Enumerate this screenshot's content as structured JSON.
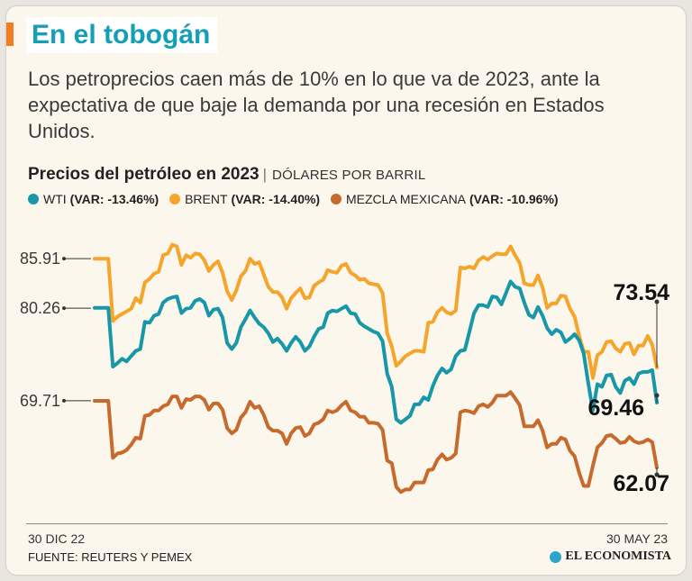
{
  "header": {
    "title": "En el tobogán",
    "deck": "Los petroprecios caen más de 10% en lo que va de 2023, ante la expectativa de que baje la demanda por una recesión en Estados Unidos.",
    "chart_title": "Precios del petróleo en 2023",
    "separator": "|",
    "unit": "DÓLARES POR BARRIL"
  },
  "footer": {
    "x_start": "30 DIC 22",
    "x_end": "30 MAY 23",
    "source": "FUENTE: REUTERS Y PEMEX",
    "brand": "EL ECONOMISTA"
  },
  "colors": {
    "wti": "#1897a8",
    "brent": "#f5a52b",
    "mezcla": "#c76a2d",
    "title": "#159fb6"
  },
  "chart_data": {
    "type": "line",
    "title": "Precios del petróleo en 2023",
    "ylabel": "DÓLARES POR BARRIL",
    "x_range": [
      "30 DIC 22",
      "30 MAY 23"
    ],
    "ylim": [
      58,
      89
    ],
    "y_ticks": [
      {
        "label": "85.91",
        "value": 85.91
      },
      {
        "label": "80.26",
        "value": 80.26
      },
      {
        "label": "69.71",
        "value": 69.71
      }
    ],
    "end_labels": [
      {
        "series": "brent",
        "label": "73.54",
        "value": 73.54
      },
      {
        "series": "wti",
        "label": "69.46",
        "value": 69.46
      },
      {
        "series": "mezcla",
        "label": "62.07",
        "value": 62.07
      }
    ],
    "series": [
      {
        "key": "wti",
        "name": "WTI",
        "var": "(VAR: -13.46%)",
        "values": [
          80.3,
          80.3,
          80.3,
          80.3,
          73.6,
          74.0,
          74.5,
          74.2,
          74.8,
          75.4,
          75.6,
          78.7,
          78.6,
          79.4,
          79.6,
          80.9,
          81.3,
          81.5,
          81.6,
          79.7,
          80.2,
          80.3,
          81.1,
          81.3,
          80.9,
          79.4,
          80.1,
          80.2,
          79.2,
          76.3,
          75.6,
          76.3,
          78.1,
          79.0,
          80.0,
          79.2,
          78.5,
          78.1,
          77.4,
          76.4,
          76.8,
          76.2,
          75.4,
          76.3,
          77.0,
          76.4,
          75.4,
          75.9,
          77.0,
          77.9,
          78.1,
          79.7,
          80.0,
          79.9,
          80.2,
          80.5,
          79.7,
          79.6,
          78.6,
          78.2,
          77.9,
          77.6,
          77.4,
          76.5,
          72.8,
          71.3,
          67.6,
          67.2,
          67.6,
          68.0,
          69.3,
          69.3,
          70.1,
          69.8,
          71.4,
          72.6,
          73.4,
          72.9,
          73.3,
          74.8,
          75.4,
          75.5,
          77.6,
          79.7,
          80.6,
          80.6,
          80.4,
          81.6,
          81.5,
          80.7,
          82.0,
          83.3,
          82.7,
          82.5,
          80.9,
          79.5,
          79.2,
          80.4,
          79.4,
          78.0,
          77.3,
          77.8,
          77.5,
          76.4,
          76.8,
          77.3,
          76.6,
          75.1,
          71.7,
          68.6,
          71.6,
          71.3,
          72.6,
          72.7,
          71.3,
          70.6,
          72.0,
          72.3,
          71.6,
          72.8,
          73.0,
          73.0,
          73.2,
          69.5
        ]
      },
      {
        "key": "brent",
        "name": "BRENT",
        "var": "(VAR: -14.40%)",
        "values": [
          85.9,
          85.9,
          85.9,
          85.9,
          78.8,
          79.3,
          79.6,
          79.9,
          80.2,
          81.4,
          80.9,
          83.2,
          83.6,
          84.2,
          84.4,
          86.3,
          86.5,
          87.5,
          87.3,
          85.2,
          86.3,
          86.0,
          86.5,
          86.4,
          85.7,
          84.5,
          85.2,
          85.6,
          84.3,
          82.2,
          81.2,
          82.3,
          83.9,
          84.5,
          85.9,
          85.3,
          85.5,
          84.1,
          82.7,
          82.1,
          82.1,
          81.5,
          80.2,
          81.4,
          82.0,
          82.5,
          81.4,
          81.5,
          82.8,
          83.2,
          83.5,
          84.6,
          84.4,
          84.3,
          85.1,
          85.3,
          84.3,
          84.0,
          83.5,
          83.6,
          83.1,
          83.0,
          82.9,
          82.0,
          77.4,
          75.9,
          73.7,
          74.2,
          74.8,
          75.1,
          75.4,
          75.4,
          75.3,
          78.6,
          78.7,
          79.8,
          80.3,
          79.8,
          79.6,
          80.0,
          84.9,
          84.8,
          85.0,
          84.8,
          85.7,
          86.1,
          85.8,
          86.2,
          86.5,
          86.4,
          86.4,
          87.3,
          86.3,
          85.4,
          83.1,
          82.9,
          82.9,
          84.0,
          82.6,
          80.3,
          80.8,
          80.8,
          81.7,
          81.6,
          80.2,
          79.3,
          77.1,
          75.3,
          75.3,
          72.3,
          74.9,
          75.3,
          76.4,
          76.5,
          75.7,
          75.3,
          76.2,
          76.3,
          75.0,
          76.0,
          76.0,
          77.1,
          76.1,
          73.5
        ]
      },
      {
        "key": "mezcla",
        "name": "MEZCLA MEXICANA",
        "var": "(VAR: -10.96%)",
        "values": [
          69.7,
          69.7,
          69.7,
          69.7,
          63.2,
          63.7,
          63.8,
          64.1,
          64.7,
          65.5,
          65.4,
          68.0,
          68.1,
          68.6,
          68.6,
          69.1,
          69.3,
          70.2,
          70.2,
          68.9,
          69.9,
          69.8,
          70.2,
          70.2,
          69.8,
          68.7,
          69.4,
          69.4,
          68.7,
          66.6,
          66.0,
          66.4,
          67.8,
          68.4,
          69.6,
          68.9,
          69.1,
          68.1,
          66.7,
          66.3,
          66.3,
          66.0,
          64.8,
          66.0,
          66.6,
          66.7,
          65.7,
          66.0,
          67.0,
          67.2,
          67.6,
          68.6,
          68.4,
          68.6,
          69.2,
          69.6,
          68.6,
          68.4,
          67.9,
          67.9,
          67.2,
          67.2,
          67.1,
          66.4,
          62.9,
          62.6,
          59.9,
          59.3,
          59.6,
          59.6,
          60.4,
          60.4,
          60.4,
          61.8,
          61.9,
          63.0,
          63.6,
          63.0,
          63.2,
          63.7,
          68.4,
          68.6,
          68.5,
          68.3,
          69.1,
          69.3,
          69.0,
          69.5,
          70.3,
          70.3,
          70.3,
          70.7,
          70.0,
          69.2,
          66.8,
          66.8,
          66.8,
          67.5,
          66.3,
          64.4,
          64.8,
          64.8,
          65.5,
          65.3,
          64.0,
          63.4,
          61.5,
          60.0,
          60.0,
          62.3,
          64.4,
          64.9,
          65.7,
          65.8,
          65.4,
          64.9,
          65.0,
          65.6,
          65.1,
          64.9,
          65.0,
          65.3,
          65.0,
          62.1
        ]
      }
    ]
  }
}
